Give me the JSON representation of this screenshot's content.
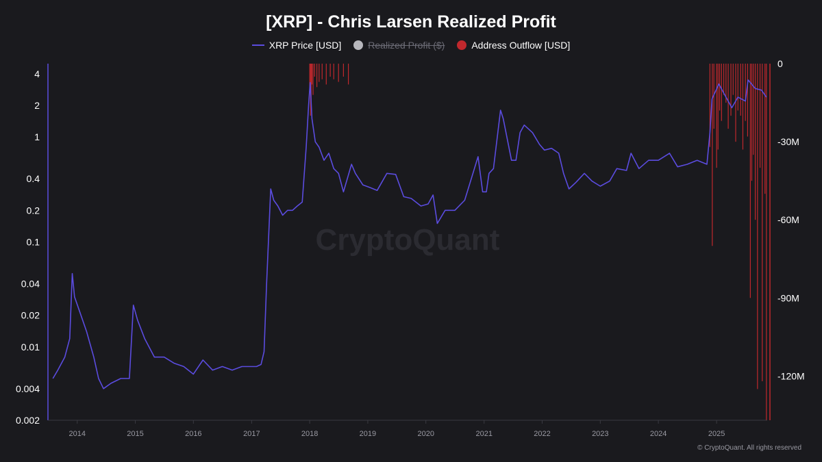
{
  "title": "[XRP] - Chris Larsen Realized Profit",
  "legend": [
    {
      "label": "XRP Price [USD]",
      "color": "#5b4ce0",
      "style": "line",
      "disabled": false
    },
    {
      "label": "Realized Profit ($)",
      "color": "#b7b7bd",
      "style": "dot",
      "disabled": true
    },
    {
      "label": "Address Outflow [USD]",
      "color": "#c0282d",
      "style": "dot",
      "disabled": false
    }
  ],
  "watermark": "CryptoQuant",
  "copyright": "© CryptoQuant. All rights reserved",
  "colors": {
    "background": "#1a1a1e",
    "price_line": "#5b4ce0",
    "outflow": "#c0282d",
    "axis_text": "#ffffff",
    "tick_text": "#9a9aa3"
  },
  "chart_data": {
    "type": "line",
    "title": "[XRP] - Chris Larsen Realized Profit",
    "x_ticks": [
      "2014",
      "2015",
      "2016",
      "2017",
      "2018",
      "2019",
      "2020",
      "2021",
      "2022",
      "2023",
      "2024",
      "2025"
    ],
    "x_range": [
      "2013-07-01",
      "2025-11-15"
    ],
    "y_left": {
      "scale": "log",
      "range": [
        0.002,
        5
      ],
      "ticks": [
        4,
        2,
        1,
        0.4,
        0.2,
        0.1,
        0.04,
        0.02,
        0.01,
        0.004,
        0.002
      ],
      "tick_labels": [
        "4",
        "2",
        "1",
        "0.4",
        "0.2",
        "0.1",
        "0.04",
        "0.02",
        "0.01",
        "0.004",
        "0.002"
      ]
    },
    "y_right": {
      "scale": "linear",
      "range": [
        -137000000,
        0
      ],
      "ticks": [
        0,
        -30000000,
        -60000000,
        -90000000,
        -120000000
      ],
      "tick_labels": [
        "0",
        "-30M",
        "-60M",
        "-90M",
        "-120M"
      ]
    },
    "series": [
      {
        "name": "XRP Price [USD]",
        "axis": "left",
        "color": "#5b4ce0",
        "x": [
          "2013-08-01",
          "2013-09-01",
          "2013-10-15",
          "2013-11-15",
          "2013-12-01",
          "2013-12-15",
          "2014-01-15",
          "2014-03-01",
          "2014-04-15",
          "2014-05-15",
          "2014-06-15",
          "2014-08-01",
          "2014-10-01",
          "2014-11-25",
          "2014-12-20",
          "2015-01-15",
          "2015-03-01",
          "2015-05-01",
          "2015-07-01",
          "2015-09-01",
          "2015-11-01",
          "2016-01-01",
          "2016-03-01",
          "2016-05-01",
          "2016-07-01",
          "2016-09-01",
          "2016-11-01",
          "2017-01-01",
          "2017-02-01",
          "2017-03-01",
          "2017-03-20",
          "2017-04-05",
          "2017-05-01",
          "2017-05-20",
          "2017-06-15",
          "2017-07-15",
          "2017-08-15",
          "2017-09-15",
          "2017-10-15",
          "2017-11-15",
          "2017-12-10",
          "2017-12-25",
          "2018-01-04",
          "2018-01-15",
          "2018-02-05",
          "2018-03-01",
          "2018-04-01",
          "2018-05-01",
          "2018-06-01",
          "2018-07-01",
          "2018-08-01",
          "2018-09-21",
          "2018-10-15",
          "2018-12-01",
          "2019-01-15",
          "2019-03-01",
          "2019-05-01",
          "2019-06-25",
          "2019-08-15",
          "2019-10-01",
          "2019-12-01",
          "2020-01-15",
          "2020-02-15",
          "2020-03-13",
          "2020-05-01",
          "2020-07-01",
          "2020-09-01",
          "2020-11-24",
          "2020-12-23",
          "2021-01-15",
          "2021-02-01",
          "2021-03-01",
          "2021-04-14",
          "2021-05-01",
          "2021-06-22",
          "2021-07-20",
          "2021-08-15",
          "2021-09-10",
          "2021-11-01",
          "2021-12-15",
          "2022-01-15",
          "2022-03-01",
          "2022-04-15",
          "2022-05-15",
          "2022-06-18",
          "2022-08-01",
          "2022-09-23",
          "2022-11-10",
          "2023-01-01",
          "2023-03-01",
          "2023-04-15",
          "2023-06-15",
          "2023-07-13",
          "2023-09-01",
          "2023-11-01",
          "2024-01-01",
          "2024-03-11",
          "2024-05-01",
          "2024-07-01",
          "2024-09-01",
          "2024-11-01",
          "2024-11-20",
          "2024-12-03",
          "2025-01-15",
          "2025-03-01",
          "2025-04-07",
          "2025-05-15",
          "2025-07-01",
          "2025-07-18",
          "2025-09-01",
          "2025-10-10",
          "2025-11-10"
        ],
        "values": [
          0.005,
          0.006,
          0.008,
          0.012,
          0.05,
          0.03,
          0.022,
          0.014,
          0.008,
          0.005,
          0.004,
          0.0045,
          0.005,
          0.005,
          0.025,
          0.018,
          0.012,
          0.008,
          0.008,
          0.007,
          0.0065,
          0.0055,
          0.0075,
          0.006,
          0.0065,
          0.006,
          0.0065,
          0.0065,
          0.0065,
          0.0068,
          0.009,
          0.04,
          0.32,
          0.25,
          0.22,
          0.18,
          0.2,
          0.2,
          0.22,
          0.24,
          0.8,
          2.0,
          3.3,
          1.5,
          0.9,
          0.8,
          0.6,
          0.7,
          0.5,
          0.45,
          0.3,
          0.55,
          0.45,
          0.35,
          0.33,
          0.31,
          0.45,
          0.44,
          0.27,
          0.26,
          0.22,
          0.23,
          0.28,
          0.15,
          0.2,
          0.2,
          0.25,
          0.65,
          0.3,
          0.3,
          0.45,
          0.5,
          1.8,
          1.5,
          0.6,
          0.6,
          1.1,
          1.3,
          1.1,
          0.85,
          0.75,
          0.78,
          0.7,
          0.45,
          0.32,
          0.37,
          0.45,
          0.38,
          0.34,
          0.38,
          0.5,
          0.48,
          0.7,
          0.5,
          0.6,
          0.6,
          0.7,
          0.52,
          0.55,
          0.6,
          0.55,
          1.1,
          2.3,
          3.2,
          2.4,
          1.9,
          2.4,
          2.2,
          3.5,
          2.9,
          2.8,
          2.4
        ]
      },
      {
        "name": "Address Outflow [USD]",
        "axis": "right",
        "color": "#c0282d",
        "type": "bar",
        "x": [
          "2018-01-01",
          "2018-01-06",
          "2018-01-10",
          "2018-01-15",
          "2018-01-22",
          "2018-02-01",
          "2018-02-15",
          "2018-03-01",
          "2018-03-20",
          "2018-04-15",
          "2018-05-10",
          "2018-06-01",
          "2018-07-01",
          "2018-08-01",
          "2018-09-01",
          "2024-11-20",
          "2024-12-05",
          "2024-12-15",
          "2025-01-01",
          "2025-01-10",
          "2025-01-20",
          "2025-02-01",
          "2025-02-15",
          "2025-03-01",
          "2025-03-15",
          "2025-04-01",
          "2025-04-15",
          "2025-05-01",
          "2025-05-15",
          "2025-06-01",
          "2025-06-15",
          "2025-07-01",
          "2025-07-15",
          "2025-08-01",
          "2025-08-10",
          "2025-08-20",
          "2025-09-01",
          "2025-09-15",
          "2025-10-01",
          "2025-10-15",
          "2025-11-01",
          "2025-11-10"
        ],
        "values": [
          -10000000,
          -20000000,
          -15000000,
          -8000000,
          -12000000,
          -5000000,
          -9000000,
          -7000000,
          -6000000,
          -8000000,
          -5000000,
          -6000000,
          -7000000,
          -5000000,
          -8000000,
          -32000000,
          -70000000,
          -25000000,
          -40000000,
          -33000000,
          -18000000,
          -22000000,
          -12000000,
          -15000000,
          -25000000,
          -20000000,
          -12000000,
          -30000000,
          -18000000,
          -20000000,
          -33000000,
          -22000000,
          -28000000,
          -90000000,
          -45000000,
          -35000000,
          -60000000,
          -125000000,
          -40000000,
          -122000000,
          -50000000,
          -137000000
        ]
      }
    ]
  }
}
